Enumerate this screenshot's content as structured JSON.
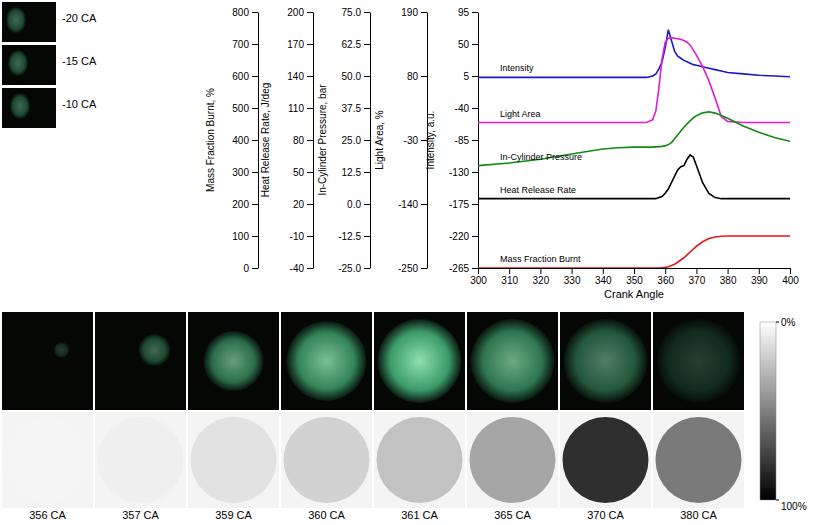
{
  "chart_data": {
    "type": "line",
    "xlabel": "Crank Angle",
    "x": [
      300,
      310,
      320,
      330,
      340,
      345,
      350,
      354,
      356,
      357,
      358,
      359,
      360,
      361,
      362,
      363,
      364,
      365,
      366,
      367,
      368,
      369,
      370,
      372,
      374,
      376,
      378,
      380,
      385,
      390,
      395,
      400
    ],
    "xlim": [
      300,
      400
    ],
    "xticks": [
      300,
      310,
      320,
      330,
      340,
      350,
      360,
      370,
      380,
      390,
      400
    ],
    "y_axes": [
      {
        "label": "Mass Fraction Burnt, %",
        "ylim": [
          0,
          800
        ],
        "yticks": [
          0,
          100,
          200,
          300,
          400,
          500,
          600,
          700,
          800
        ]
      },
      {
        "label": "Heat Release Rate, J/deg",
        "ylim": [
          -40,
          200
        ],
        "yticks": [
          -40,
          -10,
          20,
          50,
          80,
          110,
          140,
          170,
          200
        ]
      },
      {
        "label": "In-Cylinder Pressure, bar",
        "ylim": [
          -25,
          75
        ],
        "yticks": [
          {
            "value": -25,
            "label": "-25.0"
          },
          -12.5,
          {
            "value": 0,
            "label": "0.0"
          },
          12.5,
          {
            "value": 25,
            "label": "25.0"
          },
          37.5,
          {
            "value": 50,
            "label": "50.0"
          },
          62.5,
          {
            "value": 75,
            "label": "75.0"
          }
        ]
      },
      {
        "label": "Light Area, %",
        "ylim": [
          -250,
          190
        ],
        "yticks": [
          -250,
          -140,
          -30,
          80,
          190
        ]
      },
      {
        "label": "Intensity, a.u.",
        "ylim": [
          -265,
          95
        ],
        "yticks": [
          -265,
          -220,
          -175,
          -130,
          -85,
          -40,
          5,
          50,
          95
        ]
      }
    ],
    "series": [
      {
        "name": "Intensity",
        "color": "#1a1acc",
        "axis": 4,
        "values": [
          3,
          3,
          3,
          3,
          3,
          3,
          3,
          3,
          5,
          8,
          15,
          25,
          45,
          70,
          55,
          40,
          33,
          30,
          27,
          25,
          23,
          21,
          20,
          18,
          16,
          14,
          12,
          10,
          8,
          6,
          5,
          4
        ]
      },
      {
        "name": "Light Area",
        "color": "#e619d9",
        "axis": 3,
        "values": [
          0,
          0,
          0,
          0,
          0,
          0,
          0,
          0,
          5,
          20,
          60,
          110,
          138,
          145,
          146,
          145,
          144,
          143,
          141,
          138,
          133,
          125,
          116,
          96,
          72,
          42,
          10,
          2,
          0,
          0,
          0,
          0
        ]
      },
      {
        "name": "In-Cylinder Pressure",
        "color": "#138a13",
        "axis": 2,
        "values": [
          15,
          16,
          17.5,
          19.5,
          21.5,
          22,
          22.2,
          22.2,
          22.2,
          22.3,
          22.4,
          22.5,
          22.7,
          23.2,
          24,
          25.5,
          27,
          28.5,
          30,
          31.3,
          32.5,
          33.6,
          34.5,
          35.6,
          36,
          35.5,
          34.6,
          33.5,
          30.5,
          28,
          26,
          24.5
        ]
      },
      {
        "name": "Heat Release Rate",
        "color": "#000000",
        "axis": 1,
        "values": [
          25,
          25,
          25,
          25,
          25,
          25,
          25,
          25,
          25,
          25,
          26,
          27,
          30,
          34,
          40,
          46,
          52,
          55,
          56,
          62,
          66,
          64,
          56,
          40,
          30,
          26,
          25,
          25,
          25,
          25,
          25,
          25
        ]
      },
      {
        "name": "Mass Fraction Burnt",
        "color": "#e61919",
        "axis": 0,
        "values": [
          0,
          0,
          0,
          0,
          0,
          0,
          0,
          0,
          0,
          0,
          0,
          1,
          2,
          4,
          8,
          12,
          18,
          25,
          32,
          41,
          50,
          59,
          68,
          82,
          92,
          97,
          99,
          100,
          100,
          100,
          100,
          100
        ]
      }
    ]
  },
  "side_images": {
    "labels": [
      "-20 CA",
      "-15 CA",
      "-10 CA"
    ]
  },
  "image_strip": {
    "labels": [
      "356 CA",
      "357 CA",
      "359 CA",
      "360 CA",
      "361 CA",
      "365 CA",
      "370 CA",
      "380 CA"
    ]
  },
  "colorbar": {
    "range": [
      0,
      100
    ],
    "ticks": [
      {
        "value": 0,
        "label": "0%"
      },
      {
        "value": 100,
        "label": "100%"
      }
    ]
  }
}
